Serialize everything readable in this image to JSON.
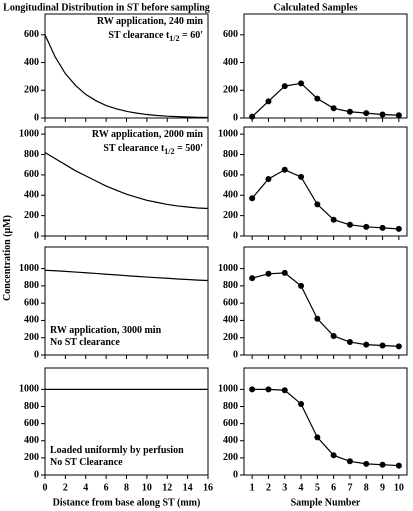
{
  "ylabel": "Concentration (μM)",
  "chart_data": [
    {
      "type": "line",
      "title": "Longitudinal Distribution in ST before sampling",
      "color": "#000000",
      "x": [
        0,
        1,
        2,
        3,
        4,
        5,
        6,
        7,
        8,
        9,
        10,
        11,
        12,
        13,
        14,
        15,
        16
      ],
      "values": [
        600,
        440,
        320,
        235,
        170,
        125,
        90,
        66,
        48,
        35,
        25,
        18,
        13,
        10,
        7,
        5,
        4
      ],
      "xlim": [
        0,
        16
      ],
      "xticks": [
        0,
        2,
        4,
        6,
        8,
        10,
        12,
        14,
        16
      ],
      "ylim": [
        0,
        750
      ],
      "yticks": [
        0,
        200,
        400,
        600
      ],
      "annotation_corner": "top-right",
      "annotation": [
        [
          {
            "text": "RW application, 240 min"
          }
        ],
        [
          {
            "text": "ST clearance t"
          },
          {
            "sub": "1/2"
          },
          {
            "text": " = 60'"
          }
        ]
      ]
    },
    {
      "type": "line",
      "title": "Calculated Samples",
      "color": "#000000",
      "markers": true,
      "x": [
        1,
        2,
        3,
        4,
        5,
        6,
        7,
        8,
        9,
        10
      ],
      "values": [
        10,
        120,
        230,
        250,
        140,
        70,
        45,
        35,
        25,
        20
      ],
      "xlim": [
        0.5,
        10.5
      ],
      "xticks": [
        1,
        2,
        3,
        4,
        5,
        6,
        7,
        8,
        9,
        10
      ],
      "ylim": [
        0,
        750
      ],
      "yticks": [
        0,
        200,
        400,
        600
      ]
    },
    {
      "type": "line",
      "color": "#000000",
      "x": [
        0,
        1,
        2,
        3,
        4,
        5,
        6,
        7,
        8,
        9,
        10,
        11,
        12,
        13,
        14,
        15,
        16
      ],
      "values": [
        820,
        760,
        700,
        640,
        590,
        540,
        490,
        450,
        410,
        380,
        350,
        330,
        310,
        295,
        285,
        275,
        270
      ],
      "xlim": [
        0,
        16
      ],
      "xticks": [
        0,
        2,
        4,
        6,
        8,
        10,
        12,
        14,
        16
      ],
      "ylim": [
        0,
        1070
      ],
      "yticks": [
        0,
        200,
        400,
        600,
        800,
        1000
      ],
      "annotation_corner": "top-right",
      "annotation": [
        [
          {
            "text": "RW application, 2000 min"
          }
        ],
        [
          {
            "text": "ST clearance t"
          },
          {
            "sub": "1/2"
          },
          {
            "text": " = 500'"
          }
        ]
      ]
    },
    {
      "type": "line",
      "color": "#000000",
      "markers": true,
      "x": [
        1,
        2,
        3,
        4,
        5,
        6,
        7,
        8,
        9,
        10
      ],
      "values": [
        370,
        560,
        650,
        580,
        310,
        160,
        110,
        90,
        80,
        70
      ],
      "xlim": [
        0.5,
        10.5
      ],
      "xticks": [
        1,
        2,
        3,
        4,
        5,
        6,
        7,
        8,
        9,
        10
      ],
      "ylim": [
        0,
        1070
      ],
      "yticks": [
        0,
        200,
        400,
        600,
        800,
        1000
      ]
    },
    {
      "type": "line",
      "color": "#000000",
      "x": [
        0,
        1,
        2,
        3,
        4,
        5,
        6,
        7,
        8,
        9,
        10,
        11,
        12,
        13,
        14,
        15,
        16
      ],
      "values": [
        980,
        975,
        968,
        960,
        952,
        944,
        935,
        927,
        918,
        910,
        902,
        895,
        888,
        880,
        874,
        867,
        862
      ],
      "xlim": [
        0,
        16
      ],
      "xticks": [
        0,
        2,
        4,
        6,
        8,
        10,
        12,
        14,
        16
      ],
      "ylim": [
        0,
        1250
      ],
      "yticks": [
        0,
        200,
        400,
        600,
        800,
        1000
      ],
      "annotation_corner": "bottom-left",
      "annotation": [
        [
          {
            "text": "RW application, 3000 min"
          }
        ],
        [
          {
            "text": "No ST clearance"
          }
        ]
      ]
    },
    {
      "type": "line",
      "color": "#000000",
      "markers": true,
      "x": [
        1,
        2,
        3,
        4,
        5,
        6,
        7,
        8,
        9,
        10
      ],
      "values": [
        890,
        940,
        950,
        800,
        420,
        220,
        150,
        120,
        110,
        100
      ],
      "xlim": [
        0.5,
        10.5
      ],
      "xticks": [
        1,
        2,
        3,
        4,
        5,
        6,
        7,
        8,
        9,
        10
      ],
      "ylim": [
        0,
        1250
      ],
      "yticks": [
        0,
        200,
        400,
        600,
        800,
        1000
      ]
    },
    {
      "type": "line",
      "color": "#000000",
      "xlabel": "Distance from base along ST (mm)",
      "x": [
        0,
        1,
        2,
        3,
        4,
        5,
        6,
        7,
        8,
        9,
        10,
        11,
        12,
        13,
        14,
        15,
        16
      ],
      "values": [
        1000,
        1000,
        1000,
        1000,
        1000,
        1000,
        1000,
        1000,
        1000,
        1000,
        1000,
        1000,
        1000,
        1000,
        1000,
        1000,
        1000
      ],
      "xlim": [
        0,
        16
      ],
      "xticks": [
        0,
        2,
        4,
        6,
        8,
        10,
        12,
        14,
        16
      ],
      "ylim": [
        0,
        1250
      ],
      "yticks": [
        0,
        200,
        400,
        600,
        800,
        1000
      ],
      "annotation_corner": "bottom-left",
      "annotation": [
        [
          {
            "text": "Loaded uniformly by perfusion"
          }
        ],
        [
          {
            "text": "No ST Clearance"
          }
        ]
      ]
    },
    {
      "type": "line",
      "color": "#000000",
      "markers": true,
      "xlabel": "Sample Number",
      "x": [
        1,
        2,
        3,
        4,
        5,
        6,
        7,
        8,
        9,
        10
      ],
      "values": [
        1000,
        1000,
        990,
        830,
        440,
        230,
        160,
        130,
        120,
        110
      ],
      "xlim": [
        0.5,
        10.5
      ],
      "xticks": [
        1,
        2,
        3,
        4,
        5,
        6,
        7,
        8,
        9,
        10
      ],
      "ylim": [
        0,
        1250
      ],
      "yticks": [
        0,
        200,
        400,
        600,
        800,
        1000
      ]
    }
  ]
}
